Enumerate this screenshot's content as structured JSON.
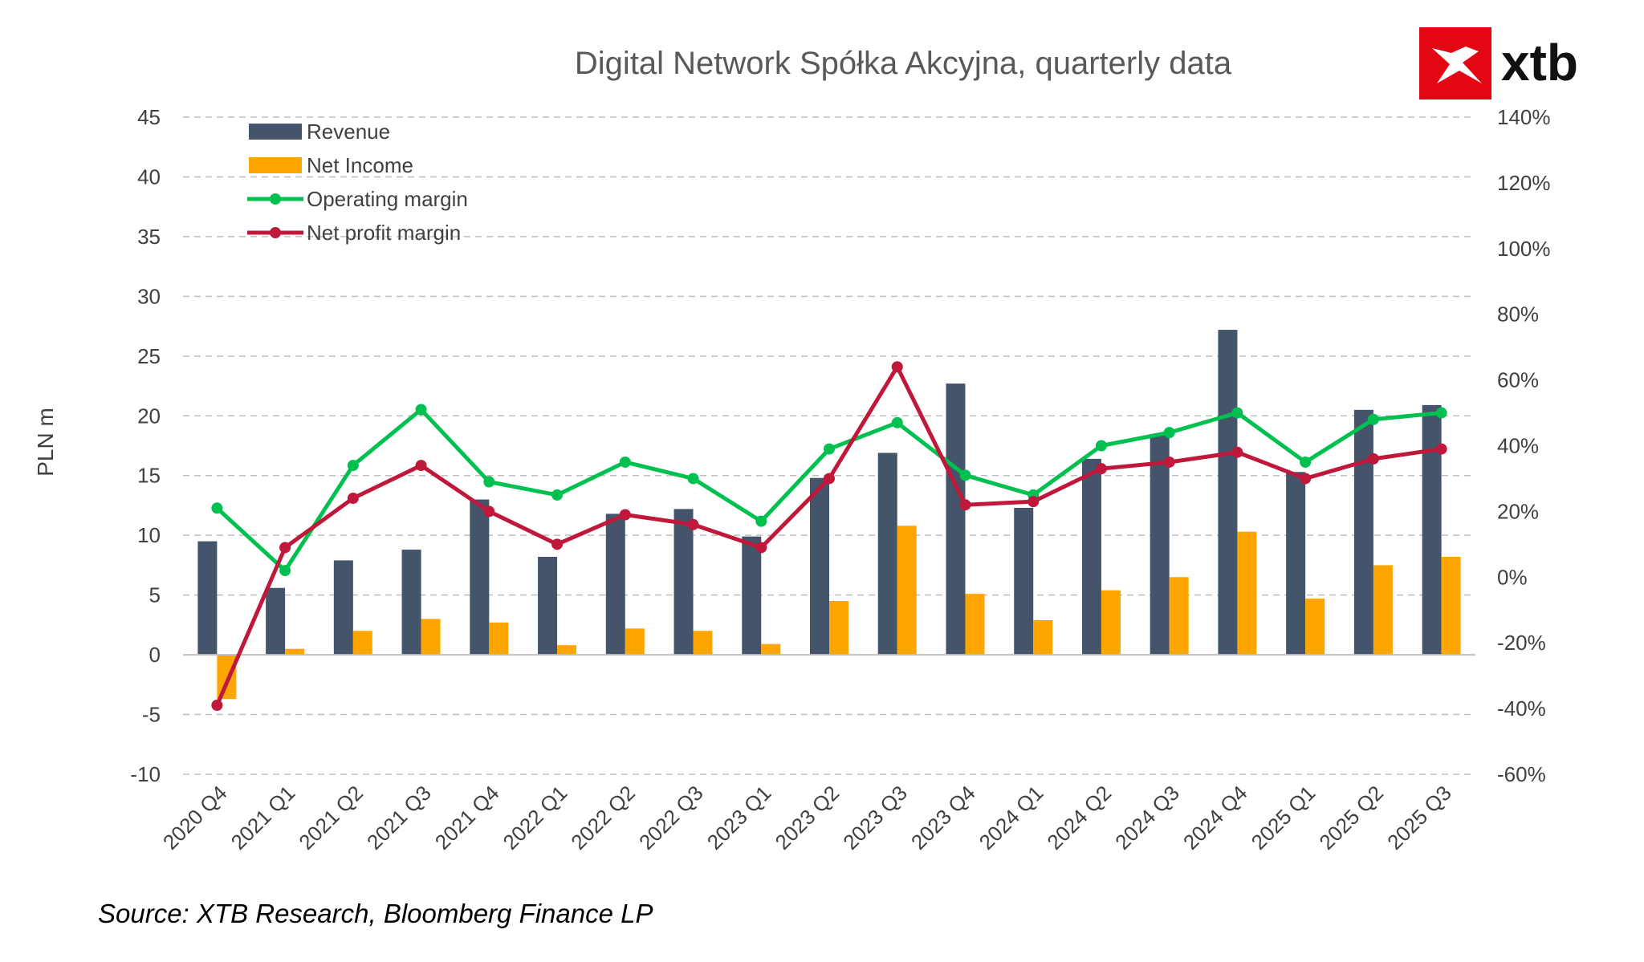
{
  "chart_data": {
    "type": "bar",
    "title": "Digital Network Spółka Akcyjna, quarterly data",
    "ylabel": "PLN m",
    "xlabel": "",
    "ylim": [
      -10,
      45
    ],
    "yticks": [
      45,
      40,
      35,
      30,
      25,
      20,
      15,
      10,
      5,
      0,
      -5,
      -10
    ],
    "y2lim": [
      -60,
      140
    ],
    "y2ticks": [
      "140%",
      "120%",
      "100%",
      "80%",
      "60%",
      "40%",
      "20%",
      "0%",
      "-20%",
      "-40%",
      "-60%"
    ],
    "y2tick_values": [
      140,
      120,
      100,
      80,
      60,
      40,
      20,
      0,
      -20,
      -40,
      -60
    ],
    "grid": true,
    "legend_position": "top-left",
    "categories": [
      "2020 Q4",
      "2021 Q1",
      "2021 Q2",
      "2021 Q3",
      "2021 Q4",
      "2022 Q1",
      "2022 Q2",
      "2022 Q3",
      "2023 Q1",
      "2023 Q2",
      "2023 Q3",
      "2023 Q4",
      "2024 Q1",
      "2024 Q2",
      "2024 Q3",
      "2024 Q4",
      "2025 Q1",
      "2025 Q2",
      "2025 Q3"
    ],
    "series": [
      {
        "name": "Revenue",
        "kind": "bar",
        "axis": "left",
        "color": "#44546a",
        "values": [
          9.5,
          5.6,
          7.9,
          8.8,
          13.0,
          8.2,
          11.8,
          12.2,
          9.9,
          14.8,
          16.9,
          22.7,
          12.3,
          16.4,
          18.4,
          27.2,
          15.3,
          20.5,
          20.9
        ]
      },
      {
        "name": "Net Income",
        "kind": "bar",
        "axis": "left",
        "color": "#ffa500",
        "values": [
          -3.7,
          0.5,
          2.0,
          3.0,
          2.7,
          0.8,
          2.2,
          2.0,
          0.9,
          4.5,
          10.8,
          5.1,
          2.9,
          5.4,
          6.5,
          10.3,
          4.7,
          7.5,
          8.2
        ]
      },
      {
        "name": "Operating margin",
        "kind": "line",
        "axis": "right",
        "color": "#00c050",
        "values": [
          21,
          2,
          34,
          51,
          29,
          25,
          35,
          30,
          17,
          39,
          47,
          31,
          25,
          40,
          44,
          50,
          35,
          48,
          50
        ]
      },
      {
        "name": "Net profit margin",
        "kind": "line",
        "axis": "right",
        "color": "#c0183a",
        "values": [
          -39,
          9,
          24,
          34,
          20,
          10,
          19,
          16,
          9,
          30,
          64,
          22,
          23,
          33,
          35,
          38,
          30,
          36,
          39
        ]
      }
    ]
  },
  "source": "Source: XTB Research, Bloomberg Finance LP",
  "logo": {
    "text": "xtb",
    "brand_color": "#e30613"
  }
}
